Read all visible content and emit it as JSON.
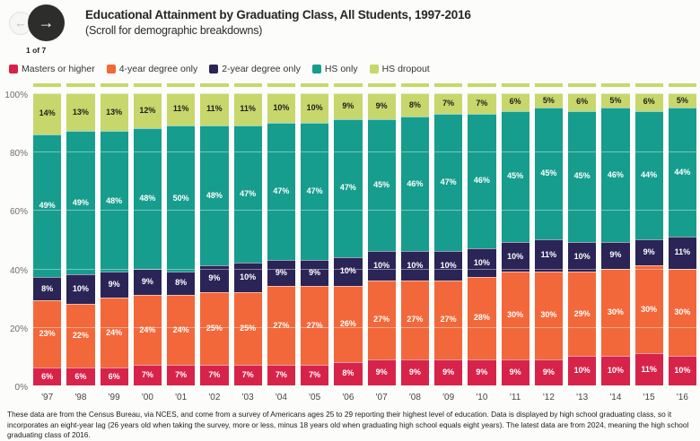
{
  "header": {
    "title": "Educational Attainment by Graduating Class, All Students, 1997-2016",
    "subtitle": "(Scroll for demographic breakdowns)",
    "page_indicator": "1 of 7"
  },
  "icons": {
    "prev_arrow": "←",
    "next_arrow": "→"
  },
  "chart_data": {
    "type": "bar",
    "stacked": true,
    "title": "Educational Attainment by Graduating Class, All Students, 1997-2016",
    "categories": [
      "'97",
      "'98",
      "'99",
      "'00",
      "'01",
      "'02",
      "'03",
      "'04",
      "'05",
      "'06",
      "'07",
      "'08",
      "'09",
      "'10",
      "'11",
      "'12",
      "'13",
      "'14",
      "'15",
      "'16"
    ],
    "series": [
      {
        "name": "Masters or higher",
        "color": "#d7234a",
        "label_color": "#ffffff",
        "values": [
          6,
          6,
          6,
          7,
          7,
          7,
          7,
          7,
          7,
          8,
          9,
          9,
          9,
          9,
          9,
          9,
          10,
          10,
          11,
          10
        ]
      },
      {
        "name": "4-year degree only",
        "color": "#f2683a",
        "label_color": "#ffffff",
        "values": [
          23,
          22,
          24,
          24,
          24,
          25,
          25,
          27,
          27,
          26,
          27,
          27,
          27,
          28,
          30,
          30,
          29,
          30,
          30,
          30
        ]
      },
      {
        "name": "2-year degree only",
        "color": "#2a2556",
        "label_color": "#ffffff",
        "values": [
          8,
          10,
          9,
          9,
          8,
          9,
          10,
          9,
          9,
          10,
          10,
          10,
          10,
          10,
          10,
          11,
          10,
          9,
          9,
          11
        ]
      },
      {
        "name": "HS only",
        "color": "#169d8d",
        "label_color": "#ffffff",
        "values": [
          49,
          49,
          48,
          48,
          50,
          48,
          47,
          47,
          47,
          47,
          45,
          46,
          47,
          46,
          45,
          45,
          45,
          46,
          44,
          44
        ]
      },
      {
        "name": "HS dropout",
        "color": "#c7d76c",
        "label_color": "#1e1e1e",
        "values": [
          14,
          13,
          13,
          12,
          11,
          11,
          11,
          10,
          10,
          9,
          9,
          8,
          7,
          7,
          6,
          5,
          6,
          5,
          6,
          5
        ]
      }
    ],
    "value_suffix": "%",
    "y_ticks": [
      "0%",
      "20%",
      "40%",
      "60%",
      "80%",
      "100%"
    ],
    "ylim": [
      0,
      100
    ],
    "grid": true,
    "legend_position": "top"
  },
  "footer": {
    "note": "These data are from the Census Bureau, via NCES, and come from a survey of Americans ages 25 to 29 reporting their highest level of education. Data is displayed by high school graduating class, so it incorporates an eight-year lag (26 years old when taking the survey, more or less, minus 18 years old when graduating high school equals eight years). The latest data are from 2024, meaning the high school graduating class of 2016."
  }
}
